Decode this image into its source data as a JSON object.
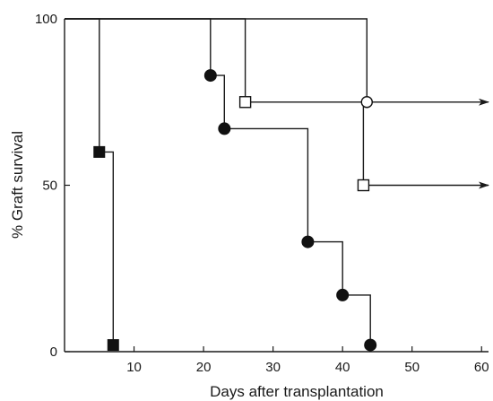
{
  "chart_data": {
    "type": "line",
    "title": "",
    "xlabel": "Days after transplantation",
    "ylabel": "% Graft survival",
    "xlim": [
      0,
      60
    ],
    "ylim": [
      0,
      100
    ],
    "x_ticks": [
      10,
      20,
      30,
      40,
      50,
      60
    ],
    "y_ticks": [
      0,
      50,
      100
    ],
    "x_tick_labels": [
      "10",
      "20",
      "30",
      "40",
      "50",
      "60"
    ],
    "y_tick_labels": [
      "0",
      "50",
      "100"
    ],
    "grid": false,
    "legend": "none",
    "series": [
      {
        "marker": "filled-square",
        "points": [
          [
            0,
            100
          ],
          [
            5,
            100
          ],
          [
            5,
            60
          ],
          [
            7,
            60
          ],
          [
            7,
            2
          ]
        ],
        "marked": [
          [
            5,
            60
          ],
          [
            7,
            2
          ]
        ],
        "arrow": false
      },
      {
        "marker": "filled-circle",
        "points": [
          [
            0,
            100
          ],
          [
            21,
            100
          ],
          [
            21,
            83
          ],
          [
            23,
            83
          ],
          [
            23,
            67
          ],
          [
            35,
            67
          ],
          [
            35,
            33
          ],
          [
            40,
            33
          ],
          [
            40,
            17
          ],
          [
            44,
            17
          ],
          [
            44,
            2
          ]
        ],
        "marked": [
          [
            21,
            83
          ],
          [
            23,
            67
          ],
          [
            35,
            33
          ],
          [
            40,
            17
          ],
          [
            44,
            2
          ]
        ],
        "arrow": false
      },
      {
        "marker": "open-square",
        "points": [
          [
            0,
            100
          ],
          [
            26,
            100
          ],
          [
            26,
            75
          ],
          [
            43,
            75
          ],
          [
            43,
            50
          ],
          [
            61,
            50
          ]
        ],
        "marked": [
          [
            26,
            75
          ],
          [
            43,
            50
          ]
        ],
        "arrow": true
      },
      {
        "marker": "open-circle",
        "points": [
          [
            0,
            100
          ],
          [
            43.5,
            100
          ],
          [
            43.5,
            75
          ],
          [
            61,
            75
          ]
        ],
        "marked": [
          [
            43.5,
            75
          ]
        ],
        "arrow": true
      }
    ]
  }
}
